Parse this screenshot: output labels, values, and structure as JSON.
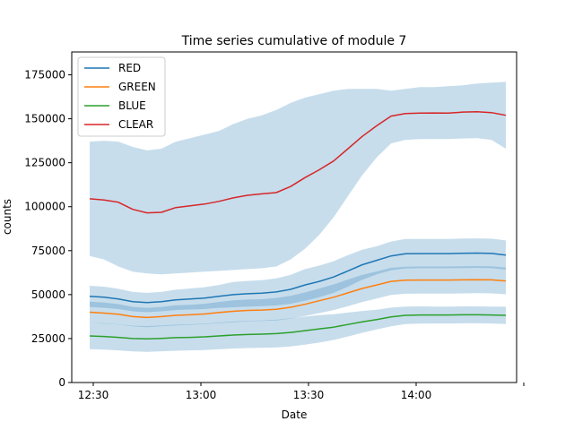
{
  "chart_data": {
    "type": "line",
    "title": "Time series cumulative of module 7",
    "xlabel": "Date",
    "ylabel": "counts",
    "xlim": [
      "12:24",
      "14:28"
    ],
    "ylim": [
      0,
      188000
    ],
    "x_ticks": [
      "12:30",
      "13:00",
      "13:30",
      "14:00",
      ""
    ],
    "y_ticks": [
      0,
      25000,
      50000,
      75000,
      100000,
      125000,
      150000,
      175000
    ],
    "y_tick_labels": [
      "0",
      "25000",
      "50000",
      "75000",
      "100000",
      "125000",
      "150000",
      "175000"
    ],
    "legend_position": "top-left",
    "grid": false,
    "x": [
      "12:29",
      "12:33",
      "12:37",
      "12:41",
      "12:45",
      "12:49",
      "12:53",
      "12:57",
      "13:01",
      "13:05",
      "13:09",
      "13:13",
      "13:17",
      "13:21",
      "13:25",
      "13:29",
      "13:33",
      "13:37",
      "13:41",
      "13:45",
      "13:49",
      "13:53",
      "13:57",
      "14:01",
      "14:05",
      "14:09",
      "14:13",
      "14:17",
      "14:21",
      "14:25"
    ],
    "series": [
      {
        "name": "RED",
        "color": "#1f77b4",
        "values": [
          49000,
          48500,
          47500,
          46000,
          45500,
          46000,
          47000,
          47500,
          48000,
          49000,
          50000,
          50500,
          50800,
          51500,
          53000,
          55500,
          57500,
          60000,
          63500,
          67000,
          69500,
          72000,
          73200,
          73300,
          73300,
          73300,
          73500,
          73600,
          73400,
          72500
        ],
        "band_low": [
          43000,
          42500,
          41800,
          40500,
          40000,
          40500,
          41200,
          41500,
          41800,
          42500,
          42800,
          43200,
          43400,
          43800,
          44800,
          46500,
          48500,
          51000,
          54500,
          58500,
          61500,
          63800,
          64800,
          65000,
          65000,
          65000,
          65100,
          65200,
          65000,
          64200
        ],
        "band_high": [
          55000,
          54500,
          53300,
          51500,
          51000,
          51500,
          52800,
          53500,
          54200,
          55500,
          57200,
          57800,
          58200,
          59200,
          61200,
          64500,
          66500,
          69000,
          72500,
          75500,
          77500,
          80200,
          81600,
          81600,
          81600,
          81600,
          81900,
          82000,
          81800,
          80800
        ]
      },
      {
        "name": "GREEN",
        "color": "#ff7f0e",
        "values": [
          40000,
          39500,
          38800,
          37500,
          37000,
          37500,
          38200,
          38500,
          39000,
          39800,
          40500,
          41000,
          41200,
          41700,
          42800,
          44500,
          46500,
          48500,
          51000,
          53500,
          55500,
          57500,
          58200,
          58300,
          58300,
          58300,
          58400,
          58500,
          58400,
          57800
        ],
        "band_low": [
          34000,
          33500,
          33000,
          32000,
          31500,
          32000,
          32500,
          32800,
          33200,
          33800,
          34300,
          34800,
          35000,
          35300,
          36300,
          37800,
          39500,
          41200,
          43400,
          45800,
          47800,
          49800,
          50500,
          50600,
          50600,
          50600,
          50700,
          50800,
          50700,
          50200
        ],
        "band_high": [
          46000,
          45500,
          44600,
          43000,
          42500,
          43000,
          43900,
          44200,
          44800,
          45800,
          46700,
          47200,
          47400,
          48100,
          49300,
          51200,
          53500,
          55800,
          58600,
          61200,
          63200,
          65200,
          65900,
          66000,
          66000,
          66000,
          66100,
          66200,
          66100,
          65400
        ]
      },
      {
        "name": "BLUE",
        "color": "#2ca02c",
        "values": [
          26500,
          26200,
          25700,
          25000,
          24800,
          25100,
          25500,
          25700,
          26000,
          26500,
          27000,
          27300,
          27500,
          27800,
          28500,
          29500,
          30500,
          31500,
          33000,
          34500,
          35800,
          37300,
          38200,
          38400,
          38400,
          38400,
          38500,
          38500,
          38400,
          38200
        ],
        "band_low": [
          19000,
          18700,
          18300,
          17700,
          17500,
          17800,
          18100,
          18300,
          18500,
          18900,
          19300,
          19600,
          19700,
          19900,
          20500,
          21500,
          22700,
          24200,
          26200,
          28300,
          30200,
          32000,
          33200,
          33500,
          33600,
          33600,
          33700,
          33700,
          33600,
          33300
        ],
        "band_high": [
          34000,
          33700,
          33100,
          32300,
          32100,
          32400,
          32900,
          33100,
          33500,
          34100,
          34700,
          35000,
          35300,
          35700,
          36500,
          37500,
          38300,
          38800,
          39800,
          40700,
          41400,
          42600,
          43200,
          43300,
          43200,
          43200,
          43300,
          43300,
          43200,
          43100
        ]
      },
      {
        "name": "CLEAR",
        "color": "#d62728",
        "values": [
          104500,
          103800,
          102500,
          98500,
          96500,
          96800,
          99500,
          100500,
          101500,
          103000,
          105000,
          106500,
          107300,
          108000,
          111500,
          116500,
          121000,
          126000,
          133000,
          140000,
          146000,
          151500,
          153000,
          153200,
          153300,
          153200,
          153800,
          154000,
          153500,
          152000
        ],
        "band_low": [
          72000,
          70000,
          66000,
          63000,
          62000,
          61500,
          62000,
          62500,
          63000,
          63500,
          64000,
          64500,
          65000,
          66000,
          70000,
          76000,
          84000,
          94000,
          106000,
          118000,
          128000,
          136000,
          138000,
          138500,
          138500,
          138500,
          138800,
          139000,
          138000,
          133000
        ],
        "band_high": [
          137000,
          137500,
          137000,
          134000,
          132000,
          133000,
          137000,
          139000,
          141000,
          143000,
          147000,
          150000,
          152000,
          155000,
          159000,
          162000,
          164000,
          166000,
          167000,
          167000,
          167000,
          166000,
          167000,
          168000,
          168000,
          168500,
          169000,
          170000,
          170500,
          171000
        ]
      }
    ]
  }
}
